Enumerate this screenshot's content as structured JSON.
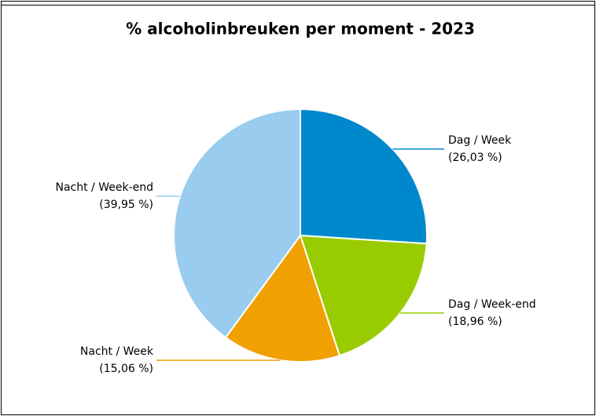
{
  "chart_data": {
    "type": "pie",
    "title": "% alcoholinbreuken per moment - 2023",
    "categories": [
      "Dag / Week",
      "Dag / Week-end",
      "Nacht / Week",
      "Nacht / Week-end"
    ],
    "values": [
      26.03,
      18.96,
      15.06,
      39.95
    ],
    "value_labels": [
      "(26,03 %)",
      "(18,96 %)",
      "(15,06 %)",
      "(39,95 %)"
    ],
    "colors": [
      "#0088cc",
      "#99cc00",
      "#f0a000",
      "#99ccee"
    ]
  }
}
